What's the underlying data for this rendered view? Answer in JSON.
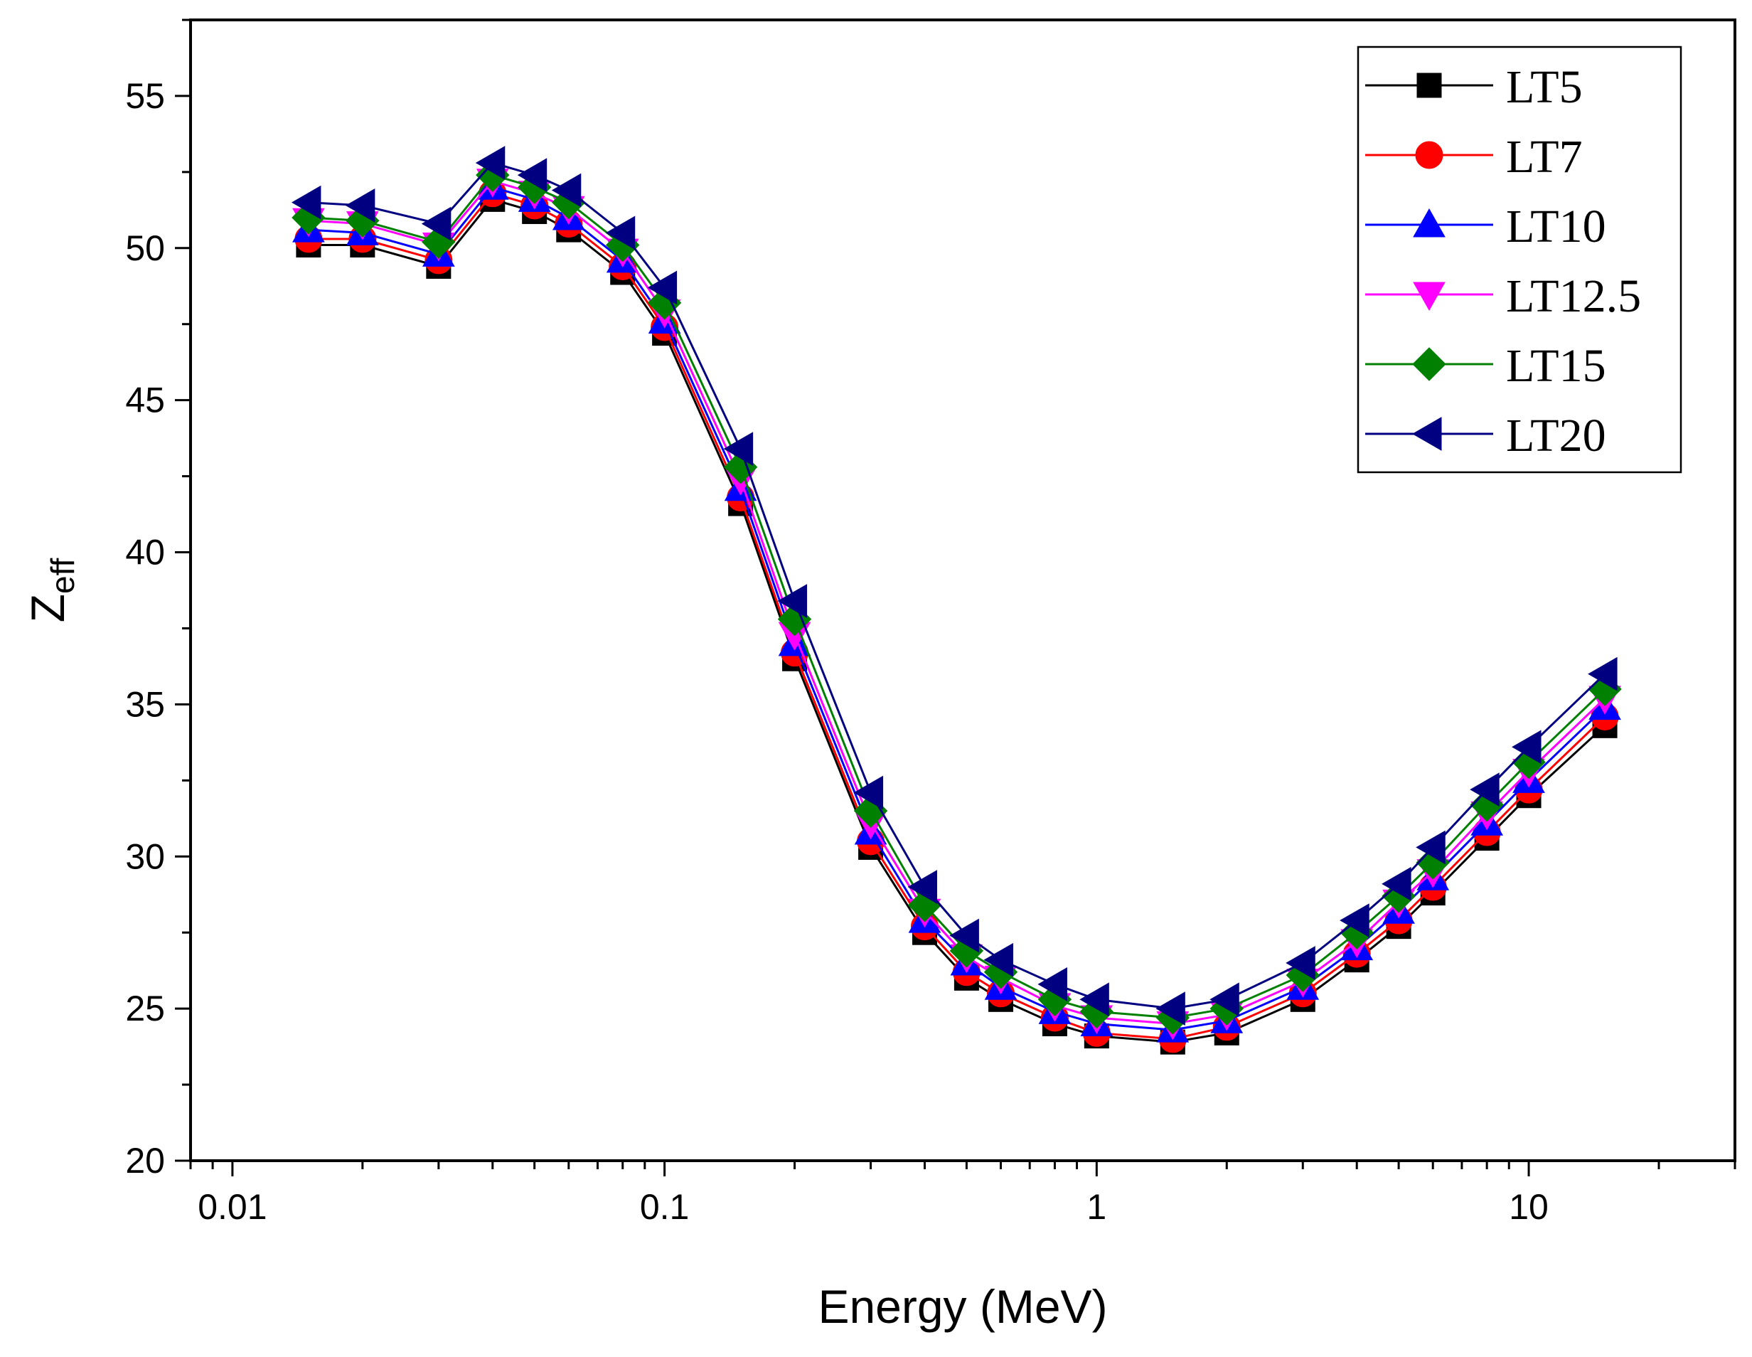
{
  "chart_data": {
    "type": "line",
    "title": "",
    "xlabel": "Energy (MeV)",
    "ylabel_main": "Z",
    "ylabel_sub": "eff",
    "xscale": "log",
    "xlim": [
      0.008,
      30
    ],
    "ylim": [
      20,
      57.5
    ],
    "xticks": [
      {
        "value": 0.01,
        "label": "0.01"
      },
      {
        "value": 0.1,
        "label": "0.1"
      },
      {
        "value": 1,
        "label": "1"
      },
      {
        "value": 10,
        "label": "10"
      }
    ],
    "yticks": [
      {
        "value": 20,
        "label": "20"
      },
      {
        "value": 25,
        "label": "25"
      },
      {
        "value": 30,
        "label": "30"
      },
      {
        "value": 35,
        "label": "35"
      },
      {
        "value": 40,
        "label": "40"
      },
      {
        "value": 45,
        "label": "45"
      },
      {
        "value": 50,
        "label": "50"
      },
      {
        "value": 55,
        "label": "55"
      }
    ],
    "legend_position": "top-right",
    "x": [
      0.015,
      0.02,
      0.03,
      0.04,
      0.05,
      0.06,
      0.08,
      0.1,
      0.15,
      0.2,
      0.3,
      0.4,
      0.5,
      0.6,
      0.8,
      1,
      1.5,
      2,
      3,
      4,
      5,
      6,
      8,
      10,
      15
    ],
    "series": [
      {
        "name": "LT5",
        "marker": "square",
        "color": "#000000",
        "values": [
          50.1,
          50.1,
          49.4,
          51.6,
          51.2,
          50.6,
          49.2,
          47.2,
          41.6,
          36.5,
          30.3,
          27.5,
          26.0,
          25.3,
          24.5,
          24.1,
          23.9,
          24.2,
          25.3,
          26.6,
          27.7,
          28.8,
          30.6,
          32.0,
          34.3
        ]
      },
      {
        "name": "LT7",
        "marker": "circle",
        "color": "#ff0000",
        "values": [
          50.3,
          50.3,
          49.6,
          51.8,
          51.4,
          50.8,
          49.4,
          47.4,
          41.8,
          36.7,
          30.5,
          27.7,
          26.2,
          25.5,
          24.7,
          24.2,
          24.0,
          24.4,
          25.5,
          26.8,
          27.9,
          29.0,
          30.8,
          32.2,
          34.6
        ]
      },
      {
        "name": "LT10",
        "marker": "triangle-up",
        "color": "#0000ff",
        "values": [
          50.6,
          50.5,
          49.8,
          52.0,
          51.6,
          51.0,
          49.6,
          47.6,
          42.1,
          37.0,
          30.8,
          27.9,
          26.5,
          25.7,
          24.9,
          24.5,
          24.3,
          24.6,
          25.7,
          27.0,
          28.2,
          29.3,
          31.1,
          32.5,
          34.9
        ]
      },
      {
        "name": "LT12.5",
        "marker": "triangle-down",
        "color": "#ff00ff",
        "values": [
          50.9,
          50.8,
          50.1,
          52.2,
          51.8,
          51.3,
          49.9,
          47.9,
          42.4,
          37.3,
          31.1,
          28.2,
          26.7,
          26.0,
          25.1,
          24.7,
          24.5,
          24.8,
          25.9,
          27.2,
          28.5,
          29.5,
          31.4,
          32.8,
          35.2
        ]
      },
      {
        "name": "LT15",
        "marker": "diamond",
        "color": "#008000",
        "values": [
          51.0,
          50.9,
          50.2,
          52.4,
          52.0,
          51.5,
          50.1,
          48.2,
          42.8,
          37.8,
          31.5,
          28.4,
          26.9,
          26.2,
          25.3,
          24.9,
          24.7,
          25.0,
          26.1,
          27.5,
          28.7,
          29.8,
          31.7,
          33.1,
          35.5
        ]
      },
      {
        "name": "LT20",
        "marker": "triangle-left",
        "color": "#000080",
        "values": [
          51.5,
          51.4,
          50.8,
          52.8,
          52.4,
          51.9,
          50.5,
          48.7,
          43.4,
          38.4,
          32.1,
          29.0,
          27.4,
          26.6,
          25.8,
          25.3,
          25.0,
          25.3,
          26.5,
          27.9,
          29.1,
          30.3,
          32.2,
          33.6,
          36.0
        ]
      }
    ]
  }
}
